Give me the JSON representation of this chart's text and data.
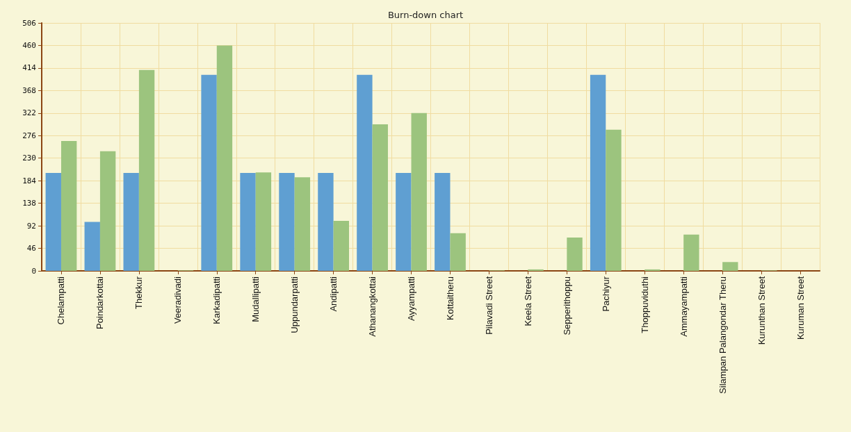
{
  "chart_data": {
    "type": "bar",
    "title": "Burn-down chart",
    "categories": [
      "Chelampatti",
      "Poindarkottai",
      "Thekkur",
      "Veeradivadi",
      "Karkadipatti",
      "Mudallipatti",
      "Uppundarpatti",
      "Andipatti",
      "Athanangkottai",
      "Ayyampatti",
      "Kottaitheru",
      "Pilavadi Street",
      "Keela Street",
      "Sepperithoppu",
      "Pachiyur",
      "Thoppuviduthi",
      "Ammayampatti",
      "Silampan Palangondar Theru",
      "Kurunthan Street",
      "Kuruman Street"
    ],
    "series": [
      {
        "color": "#5f9fd2",
        "values": [
          200,
          100,
          200,
          0,
          400,
          200,
          200,
          200,
          400,
          200,
          200,
          0,
          0,
          0,
          400,
          0,
          0,
          0,
          0,
          0
        ]
      },
      {
        "color": "#9cc47e",
        "values": [
          265,
          244,
          410,
          1,
          460,
          201,
          191,
          102,
          299,
          322,
          77,
          1,
          3,
          68,
          288,
          3,
          74,
          18,
          1,
          0
        ]
      }
    ],
    "ylim": [
      0,
      506
    ],
    "yticks": [
      0,
      46,
      92,
      138,
      184,
      230,
      276,
      322,
      368,
      414,
      460,
      506
    ],
    "grid": true
  }
}
